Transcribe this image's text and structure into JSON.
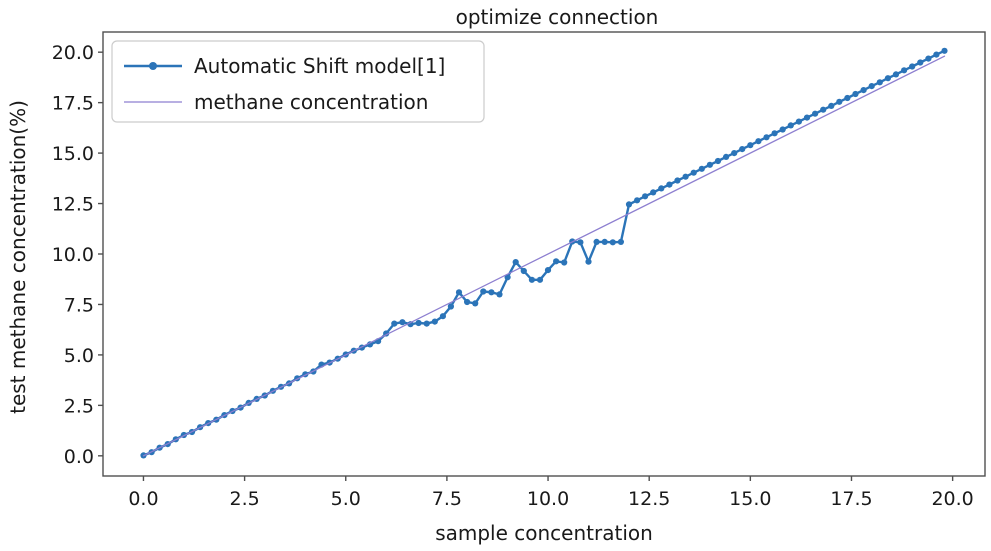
{
  "figure": {
    "title": "optimize connection"
  },
  "chart_data": {
    "type": "line",
    "title": "optimize connection",
    "xlabel": "sample concentration",
    "ylabel": "test methane concentration(%)",
    "xlim": [
      -1.0,
      20.8
    ],
    "ylim": [
      -1.0,
      21.0
    ],
    "xticks": [
      0,
      2.5,
      5,
      7.5,
      10,
      12.5,
      15,
      17.5,
      20
    ],
    "xtick_labels": [
      "0.0",
      "2.5",
      "5.0",
      "7.5",
      "10.0",
      "12.5",
      "15.0",
      "17.5",
      "20.0"
    ],
    "yticks": [
      0,
      2.5,
      5,
      7.5,
      10,
      12.5,
      15,
      17.5,
      20
    ],
    "ytick_labels": [
      "0.0",
      "2.5",
      "5.0",
      "7.5",
      "10.0",
      "12.5",
      "15.0",
      "17.5",
      "20.0"
    ],
    "grid": false,
    "legend_position": "upper-left",
    "colors": {
      "model_line": "#2b74b8",
      "reference_line": "#8d7fd0",
      "spine": "#4f4f4f",
      "text": "#1a1a1a",
      "legend_border": "#cccccc"
    },
    "series": [
      {
        "name": "Automatic Shift model[1]",
        "style": "line-markers",
        "marker": "circle",
        "color": "#2b74b8",
        "x": [
          0.0,
          0.2,
          0.4,
          0.6,
          0.8,
          1.0,
          1.2,
          1.4,
          1.6,
          1.8,
          2.0,
          2.2,
          2.4,
          2.6,
          2.8,
          3.0,
          3.2,
          3.4,
          3.6,
          3.8,
          4.0,
          4.2,
          4.4,
          4.6,
          4.8,
          5.0,
          5.2,
          5.4,
          5.6,
          5.8,
          6.0,
          6.2,
          6.4,
          6.6,
          6.8,
          7.0,
          7.2,
          7.4,
          7.6,
          7.8,
          8.0,
          8.2,
          8.4,
          8.6,
          8.8,
          9.0,
          9.2,
          9.4,
          9.6,
          9.8,
          10.0,
          10.2,
          10.4,
          10.6,
          10.8,
          11.0,
          11.2,
          11.4,
          11.6,
          11.8,
          12.0,
          12.2,
          12.4,
          12.6,
          12.8,
          13.0,
          13.2,
          13.4,
          13.6,
          13.8,
          14.0,
          14.2,
          14.4,
          14.6,
          14.8,
          15.0,
          15.2,
          15.4,
          15.6,
          15.8,
          16.0,
          16.2,
          16.4,
          16.6,
          16.8,
          17.0,
          17.2,
          17.4,
          17.6,
          17.8,
          18.0,
          18.2,
          18.4,
          18.6,
          18.8,
          19.0,
          19.2,
          19.4,
          19.6,
          19.8
        ],
        "y": [
          0.02,
          0.18,
          0.4,
          0.58,
          0.82,
          1.03,
          1.18,
          1.42,
          1.62,
          1.79,
          2.02,
          2.22,
          2.39,
          2.62,
          2.82,
          2.99,
          3.22,
          3.42,
          3.59,
          3.84,
          4.04,
          4.18,
          4.52,
          4.62,
          4.81,
          5.02,
          5.21,
          5.36,
          5.52,
          5.68,
          6.06,
          6.55,
          6.62,
          6.52,
          6.58,
          6.55,
          6.65,
          6.92,
          7.4,
          8.1,
          7.62,
          7.55,
          8.14,
          8.1,
          8.0,
          8.85,
          9.6,
          9.16,
          8.72,
          8.72,
          9.2,
          9.64,
          9.58,
          10.62,
          10.58,
          9.62,
          10.6,
          10.6,
          10.58,
          10.6,
          12.46,
          12.66,
          12.86,
          13.05,
          13.25,
          13.44,
          13.64,
          13.83,
          14.03,
          14.22,
          14.42,
          14.61,
          14.81,
          15.0,
          15.2,
          15.39,
          15.59,
          15.78,
          15.98,
          16.17,
          16.37,
          16.56,
          16.76,
          16.95,
          17.15,
          17.34,
          17.54,
          17.73,
          17.93,
          18.12,
          18.32,
          18.51,
          18.71,
          18.9,
          19.1,
          19.29,
          19.49,
          19.68,
          19.88,
          20.07
        ]
      },
      {
        "name": "methane concentration",
        "style": "line",
        "color": "#8d7fd0",
        "x": [
          0.0,
          19.8
        ],
        "y": [
          0.0,
          19.8
        ]
      }
    ]
  }
}
